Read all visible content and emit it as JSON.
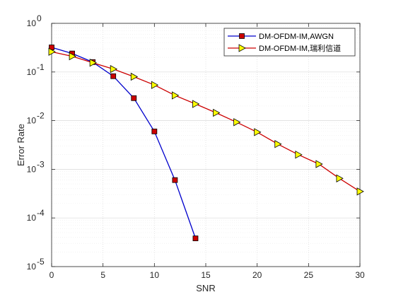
{
  "chart_data": {
    "type": "line",
    "xlabel": "SNR",
    "ylabel": "Error Rate",
    "xlim": [
      0,
      30
    ],
    "ylim": [
      1e-05,
      1
    ],
    "yscale": "log",
    "grid": true,
    "legend_position": "top-right",
    "x_ticks": [
      "0",
      "5",
      "10",
      "15",
      "20",
      "25",
      "30"
    ],
    "y_tick_values": [
      1e-05,
      0.0001,
      0.001,
      0.01,
      0.1,
      1
    ],
    "y_tick_exponents": [
      "-5",
      "-4",
      "-3",
      "-2",
      "-1",
      "0"
    ],
    "y_tick_base": "10",
    "series": [
      {
        "name": "DM-OFDM-IM,AWGN",
        "color": "#0000cc",
        "marker": "square",
        "marker_color": "#cc0000",
        "x": [
          0,
          2,
          4,
          6,
          8,
          10,
          12,
          14
        ],
        "y": [
          0.32,
          0.24,
          0.16,
          0.082,
          0.029,
          0.006,
          0.0006,
          3.8e-05
        ]
      },
      {
        "name": "DM-OFDM-IM,瑞利信道",
        "color": "#cc0000",
        "marker": "triangle-right",
        "marker_color": "#ffff00",
        "x": [
          0,
          2,
          4,
          6,
          8,
          10,
          12,
          14,
          16,
          18,
          20,
          22,
          24,
          26,
          28,
          30
        ],
        "y": [
          0.26,
          0.21,
          0.155,
          0.115,
          0.08,
          0.054,
          0.033,
          0.022,
          0.0145,
          0.0093,
          0.0058,
          0.0033,
          0.002,
          0.00128,
          0.00065,
          0.00035
        ]
      }
    ]
  }
}
